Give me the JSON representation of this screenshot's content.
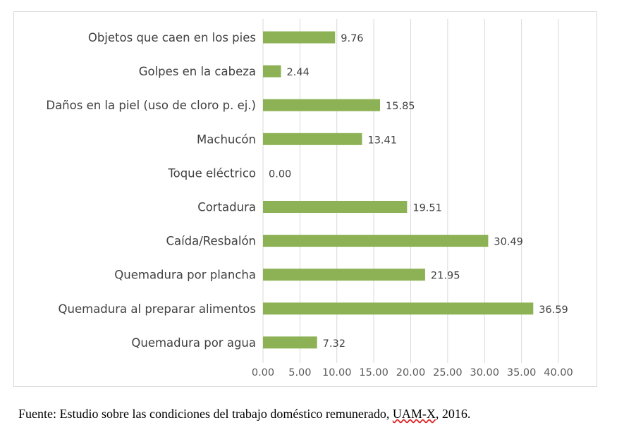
{
  "chart_data": {
    "type": "bar",
    "orientation": "horizontal",
    "categories": [
      "Objetos que caen en los pies",
      "Golpes en la cabeza",
      "Daños en la piel (uso de cloro p. ej.)",
      "Machucón",
      "Toque eléctrico",
      "Cortadura",
      "Caída/Resbalón",
      "Quemadura por plancha",
      "Quemadura al preparar alimentos",
      "Quemadura por agua"
    ],
    "values": [
      9.76,
      2.44,
      15.85,
      13.41,
      0.0,
      19.51,
      30.49,
      21.95,
      36.59,
      7.32
    ],
    "value_labels": [
      "9.76",
      "2.44",
      "15.85",
      "13.41",
      "0.00",
      "19.51",
      "30.49",
      "21.95",
      "36.59",
      "7.32"
    ],
    "xlim": [
      0,
      40
    ],
    "ticks": [
      0,
      5,
      10,
      15,
      20,
      25,
      30,
      35,
      40
    ],
    "tick_labels": [
      "0.00",
      "5.00",
      "10.00",
      "15.00",
      "20.00",
      "25.00",
      "30.00",
      "35.00",
      "40.00"
    ],
    "grid": true,
    "legend": "none",
    "bar_color": "#8db255",
    "grid_color": "#d9d9d9",
    "title": "",
    "xlabel": "",
    "ylabel": ""
  },
  "caption": {
    "before": "Fuente: Estudio sobre las condiciones del trabajo doméstico remunerado, ",
    "underlined": "UAM-X",
    "after": ", 2016."
  }
}
